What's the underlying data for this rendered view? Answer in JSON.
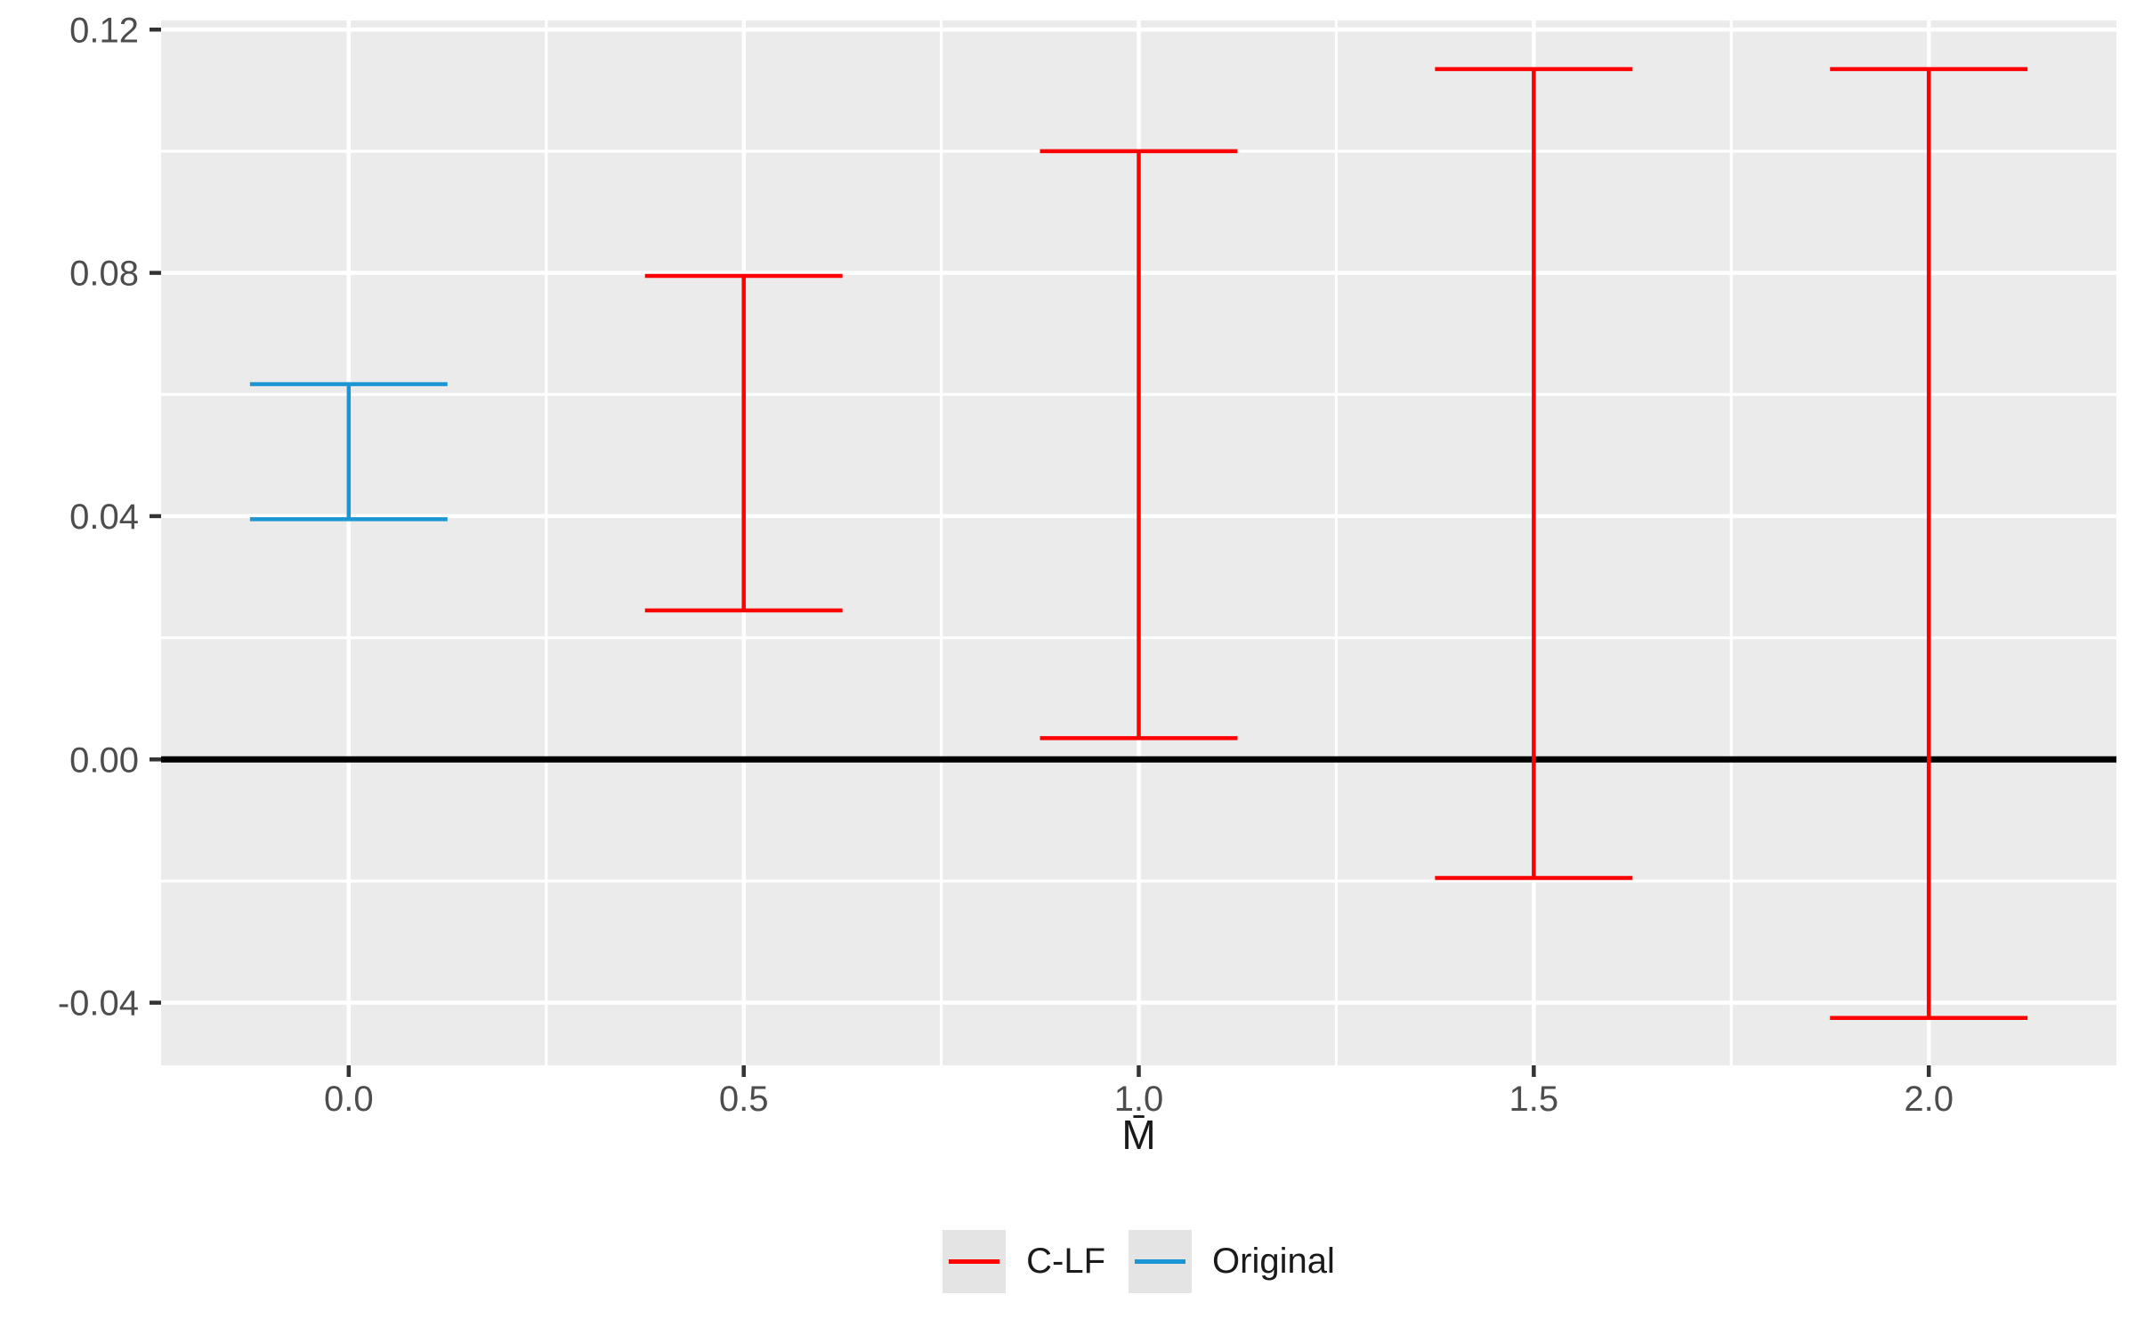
{
  "figure": {
    "background": "#FFFFFF",
    "panel_background": "#EBEBEB",
    "grid_color": "#FFFFFF",
    "tick_color": "#333333",
    "tick_label_color": "#4D4D4D",
    "title_color": "#1A1A1A",
    "zero_line_color": "#000000"
  },
  "chart_data": {
    "type": "errorbar",
    "title": "",
    "xlabel": "M̄",
    "ylabel": "",
    "grid": "on",
    "xlim": [
      -0.2375,
      2.2375
    ],
    "ylim": [
      -0.0503,
      0.1215
    ],
    "x_ticks": {
      "values": [
        0.0,
        0.5,
        1.0,
        1.5,
        2.0
      ],
      "labels": [
        "0.0",
        "0.5",
        "1.0",
        "1.5",
        "2.0"
      ],
      "minor": [
        0.25,
        0.75,
        1.25,
        1.75
      ]
    },
    "y_ticks": {
      "values": [
        -0.04,
        0.0,
        0.04,
        0.08,
        0.12
      ],
      "labels": [
        "-0.04",
        "0.00",
        "0.04",
        "0.08",
        "0.12"
      ],
      "minor": [
        -0.02,
        0.02,
        0.06,
        0.1
      ]
    },
    "hline": 0.0,
    "cap_width": 0.25,
    "series": [
      {
        "name": "C-LF",
        "color": "#FF0000",
        "points": [
          {
            "x": 0.5,
            "ymin": 0.0245,
            "ymax": 0.0795
          },
          {
            "x": 1.0,
            "ymin": 0.0035,
            "ymax": 0.1
          },
          {
            "x": 1.5,
            "ymin": -0.0195,
            "ymax": 0.1135
          },
          {
            "x": 2.0,
            "ymin": -0.0425,
            "ymax": 0.1135
          }
        ]
      },
      {
        "name": "Original",
        "color": "#1C96D2",
        "points": [
          {
            "x": 0.0,
            "ymin": 0.0395,
            "ymax": 0.0617
          }
        ]
      }
    ],
    "legend": {
      "position": "bottom",
      "items": [
        {
          "label": "C-LF",
          "color": "#FF0000"
        },
        {
          "label": "Original",
          "color": "#1C96D2"
        }
      ]
    }
  }
}
